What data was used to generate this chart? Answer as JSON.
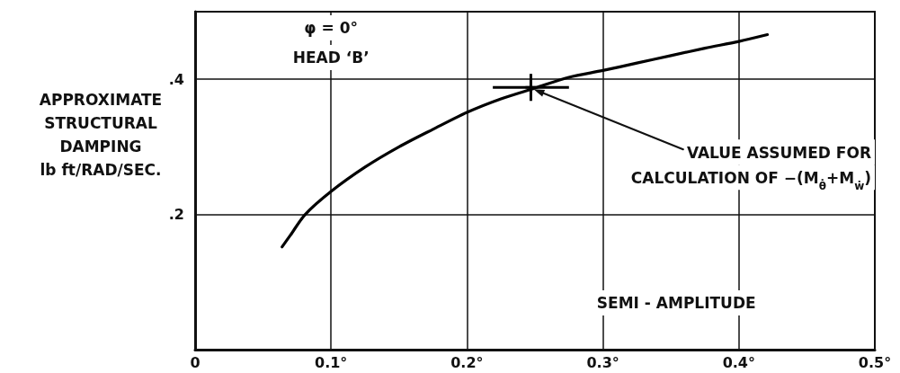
{
  "chart_data": {
    "type": "line",
    "xlabel": "SEMI - AMPLITUDE",
    "ylabel": "APPROXIMATE\nSTRUCTURAL\nDAMPING\nlb ft/RAD/SEC.",
    "annotations": [
      "φ = 0°",
      "HEAD ‘B’",
      "VALUE ASSUMED FOR\nCALCULATION OF −(M$_{θ̇}$+M$_{ẇ}$)"
    ],
    "series": [
      {
        "color": "#000000",
        "x": [
          0.064,
          0.07,
          0.081,
          0.1,
          0.125,
          0.15,
          0.175,
          0.2,
          0.225,
          0.25,
          0.275,
          0.3,
          0.325,
          0.35,
          0.375,
          0.4,
          0.421
        ],
        "values": [
          0.152,
          0.169,
          0.2,
          0.234,
          0.27,
          0.3,
          0.326,
          0.351,
          0.371,
          0.387,
          0.403,
          0.413,
          0.424,
          0.435,
          0.446,
          0.456,
          0.466
        ]
      },
      {
        "type": "scatter",
        "marker": "cross",
        "color": "#000000",
        "x": [
          0.247
        ],
        "values": [
          0.388
        ],
        "errors": [
          0.02
        ],
        "xerrors": [
          0.028
        ]
      }
    ],
    "xlim": [
      0,
      0.5
    ],
    "ylim": [
      0,
      0.5
    ],
    "xticks": [
      0,
      {
        "value": 0.1,
        "label": "0.1°"
      },
      {
        "value": 0.2,
        "label": "0.2°"
      },
      {
        "value": 0.3,
        "label": "0.3°"
      },
      {
        "value": 0.4,
        "label": "0.4°"
      },
      {
        "value": 0.5,
        "label": "0.5°"
      }
    ],
    "yticks": [
      {
        "value": 0.2,
        "label": ".2"
      },
      {
        "value": 0.4,
        "label": ".4"
      }
    ],
    "grid": true,
    "line_style": "solid"
  }
}
